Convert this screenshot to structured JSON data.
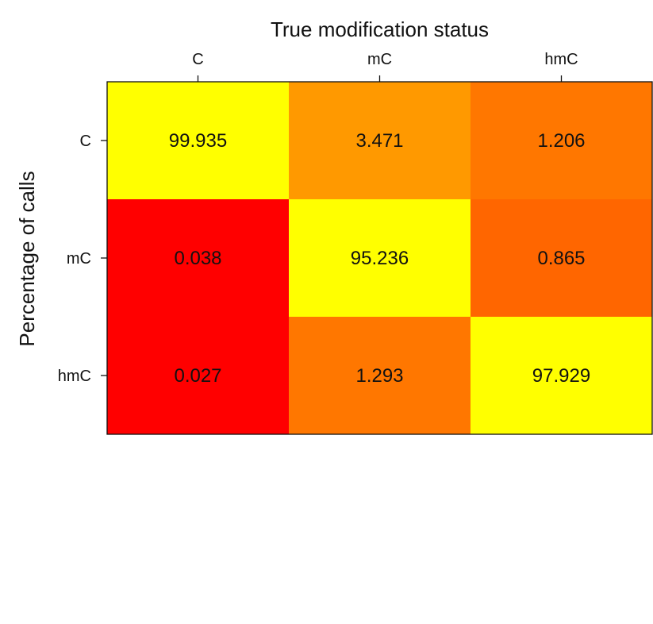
{
  "chart_data": {
    "type": "heatmap",
    "title": "",
    "xlabel": "True modification status",
    "ylabel": "Percentage of calls",
    "x_categories": [
      "C",
      "mC",
      "hmC"
    ],
    "y_categories": [
      "C",
      "mC",
      "hmC"
    ],
    "values": [
      [
        99.935,
        3.471,
        1.206
      ],
      [
        0.038,
        95.236,
        0.865
      ],
      [
        0.027,
        1.293,
        97.929
      ]
    ],
    "value_labels": [
      [
        "99.935",
        "3.471",
        "1.206"
      ],
      [
        "0.038",
        "95.236",
        "0.865"
      ],
      [
        "0.027",
        "1.293",
        "97.929"
      ]
    ],
    "colors": [
      [
        "#FFFF00",
        "#FF9900",
        "#FF7700"
      ],
      [
        "#FF0000",
        "#FFFF00",
        "#FF6600"
      ],
      [
        "#FF0000",
        "#FF7700",
        "#FFFF00"
      ]
    ],
    "x_axis_position": "top",
    "grid": false,
    "legend": false
  }
}
